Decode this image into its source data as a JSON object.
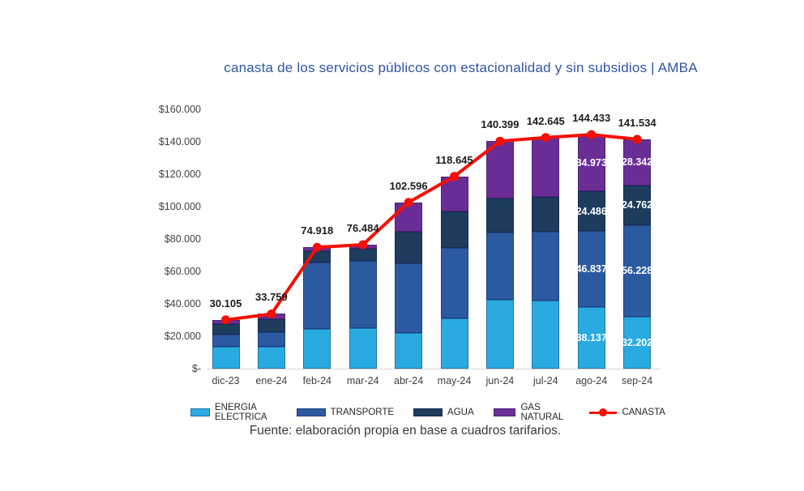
{
  "chart_data": {
    "type": "bar",
    "stacked": true,
    "title": "canasta de los servicios públicos con estacionalidad y sin subsidios | AMBA",
    "categories": [
      "dic-23",
      "ene-24",
      "feb-24",
      "mar-24",
      "abr-24",
      "may-24",
      "jun-24",
      "jul-24",
      "ago-24",
      "sep-24"
    ],
    "series": [
      {
        "name": "ENERGIA ELECTRICA",
        "color": "#29ABE2",
        "values": [
          13500,
          13600,
          24500,
          25000,
          22000,
          31000,
          42500,
          42000,
          38137,
          32202
        ],
        "labels": [
          "",
          "",
          "",
          "",
          "",
          "",
          "",
          "",
          "38.137",
          "32.202"
        ]
      },
      {
        "name": "TRANSPORTE",
        "color": "#2B5AA1",
        "values": [
          7700,
          8900,
          41000,
          41500,
          43000,
          43500,
          41500,
          42500,
          46837,
          56228
        ],
        "labels": [
          "",
          "",
          "",
          "",
          "",
          "",
          "",
          "",
          "46.837",
          "56.228"
        ]
      },
      {
        "name": "AGUA",
        "color": "#1D3C5E",
        "values": [
          6300,
          7800,
          7100,
          7300,
          19300,
          22500,
          21000,
          21500,
          24486,
          24762
        ],
        "labels": [
          "",
          "",
          "",
          "",
          "",
          "",
          "",
          "",
          "24.486",
          "24.762"
        ]
      },
      {
        "name": "GAS NATURAL",
        "color": "#6A2D96",
        "values": [
          2605,
          3459,
          2318,
          2684,
          18296,
          21645,
          35399,
          36645,
          34973,
          28342
        ],
        "labels": [
          "",
          "",
          "",
          "",
          "",
          "",
          "",
          "",
          "34.973",
          "28.342"
        ]
      }
    ],
    "line": {
      "name": "CANASTA",
      "color": "#F50F04",
      "values": [
        30105,
        33759,
        74918,
        76484,
        102596,
        118645,
        140399,
        142645,
        144433,
        141534
      ],
      "labels": [
        "30.105",
        "33.759",
        "74.918",
        "76.484",
        "102.596",
        "118.645",
        "140.399",
        "142.645",
        "144.433",
        "141.534"
      ]
    },
    "y_axis": {
      "min": 0,
      "max": 160000,
      "tick_step": 20000,
      "ticks": [
        {
          "label": "$160.000",
          "value": 160000
        },
        {
          "label": "$140.000",
          "value": 140000
        },
        {
          "label": "$120.000",
          "value": 120000
        },
        {
          "label": "$100.000",
          "value": 100000
        },
        {
          "label": "$80.000",
          "value": 80000
        },
        {
          "label": "$60.000",
          "value": 60000
        },
        {
          "label": "$40.000",
          "value": 40000
        },
        {
          "label": "$20.000",
          "value": 20000
        },
        {
          "label": "$-",
          "value": 0
        }
      ]
    },
    "grid": false,
    "legend_position": "bottom"
  },
  "source_note": "Fuente: elaboración propia en base a cuadros tarifarios.",
  "colors": {
    "background": "#FFFFFF",
    "title_text": "#2F55A4",
    "axis_text": "#404040",
    "total_label_text": "#1C1C1C",
    "segment_label_text": "#FFFFFF",
    "baseline": "#D6D6D6"
  }
}
